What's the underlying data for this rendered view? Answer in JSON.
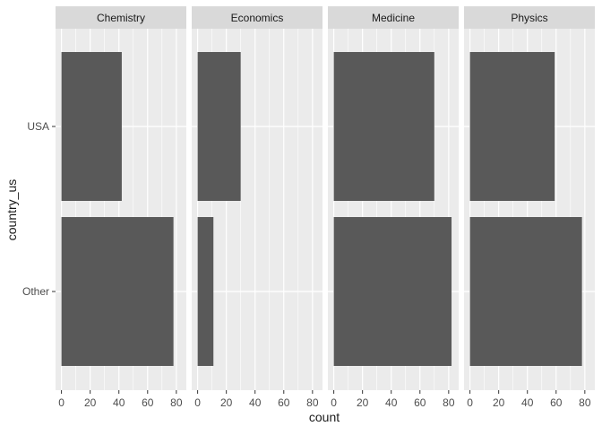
{
  "chart_data": {
    "type": "bar",
    "orientation": "horizontal",
    "facet_by": "category",
    "facets": [
      "Chemistry",
      "Economics",
      "Medicine",
      "Physics"
    ],
    "categories": [
      "USA",
      "Other"
    ],
    "values": {
      "Chemistry": {
        "USA": 42,
        "Other": 78
      },
      "Economics": {
        "USA": 30,
        "Other": 11
      },
      "Medicine": {
        "USA": 70,
        "Other": 82
      },
      "Physics": {
        "USA": 59,
        "Other": 78
      }
    },
    "xlabel": "count",
    "ylabel": "country_us",
    "xlim": [
      0,
      85
    ],
    "x_ticks": [
      0,
      20,
      40,
      60,
      80
    ],
    "x_tick_labels": [
      "0",
      "20",
      "40",
      "60",
      "80"
    ],
    "grid": true,
    "colors": {
      "bar": "#595959",
      "panel_background": "#ebebeb",
      "strip_background": "#d9d9d9",
      "grid": "#ffffff",
      "text": "#1a1a1a",
      "axis_text": "#4d4d4d"
    }
  }
}
